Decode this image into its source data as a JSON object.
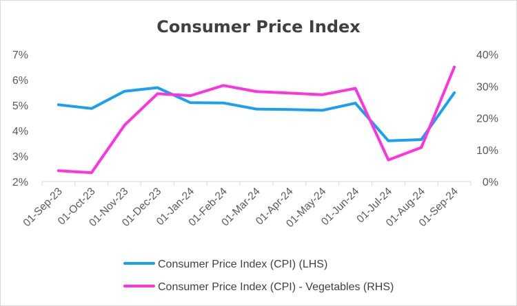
{
  "chart_data": {
    "type": "line",
    "title": "Consumer Price Index",
    "categories": [
      "01-Sep-23",
      "01-Oct-23",
      "01-Nov-23",
      "01-Dec-23",
      "01-Jan-24",
      "01-Feb-24",
      "01-Mar-24",
      "01-Apr-24",
      "01-May-24",
      "01-Jun-24",
      "01-Jul-24",
      "01-Aug-24",
      "01-Sep-24"
    ],
    "y_left": {
      "min": 2,
      "max": 7,
      "ticks": [
        "2%",
        "3%",
        "4%",
        "5%",
        "6%",
        "7%"
      ]
    },
    "y_right": {
      "min": 0,
      "max": 40,
      "ticks": [
        "0%",
        "10%",
        "20%",
        "30%",
        "40%"
      ]
    },
    "grid": false,
    "legend_position": "bottom",
    "series": [
      {
        "name": "Consumer Price Index (CPI) (LHS)",
        "axis": "left",
        "color": "#1aa0f0",
        "values": [
          5.02,
          4.87,
          5.55,
          5.69,
          5.1,
          5.09,
          4.85,
          4.83,
          4.8,
          5.08,
          3.6,
          3.65,
          5.49
        ]
      },
      {
        "name": "Consumer Price Index (CPI) - Vegetables (RHS)",
        "axis": "right",
        "color": "#ff33dd",
        "values": [
          3.4,
          2.8,
          17.7,
          27.6,
          27.0,
          30.2,
          28.3,
          27.8,
          27.3,
          29.3,
          6.8,
          10.7,
          36.0
        ]
      }
    ]
  }
}
